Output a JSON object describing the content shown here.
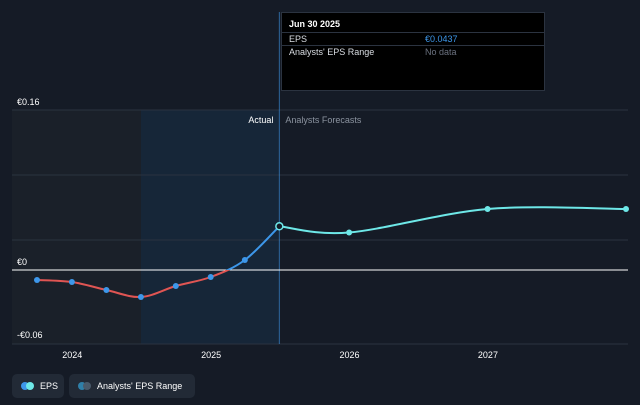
{
  "colors": {
    "background": "#151b26",
    "past_region": "#1a2029",
    "actual_highlight": "#162638",
    "eps_actual_positive": "#3d97ea",
    "eps_actual_negative": "#e05553",
    "eps_forecast": "#6ee8e8",
    "zero_line": "#ffffff",
    "grid": "#2b3340"
  },
  "region_labels": {
    "actual": "Actual",
    "forecast": "Analysts Forecasts"
  },
  "tooltip": {
    "title": "Jun 30 2025",
    "rows": [
      {
        "key": "EPS",
        "value": "€0.0437",
        "value_color": "#3d97ea"
      },
      {
        "key": "Analysts' EPS Range",
        "value": "No data",
        "value_color": "#6b7280"
      }
    ]
  },
  "legend": [
    {
      "label": "EPS",
      "icon": "eps-legend-icon",
      "colors": [
        "#3d97ea",
        "#6ee8e8"
      ]
    },
    {
      "label": "Analysts' EPS Range",
      "icon": "range-legend-icon",
      "colors": [
        "#2f7fa8",
        "#4a5a6a"
      ]
    }
  ],
  "chart_data": {
    "type": "line",
    "x_tick_labels": [
      "2024",
      "2025",
      "2026",
      "2027"
    ],
    "y_tick_labels": [
      "€0.16",
      "€0",
      "-€0.06"
    ],
    "ylim": [
      -0.06,
      0.16
    ],
    "xlim": [
      "2023-09-30",
      "2027-12-31"
    ],
    "grid": true,
    "series": [
      {
        "name": "EPS",
        "segment": "actual",
        "points": [
          {
            "x": "2023-09-30",
            "y": -0.01
          },
          {
            "x": "2023-12-31",
            "y": -0.012
          },
          {
            "x": "2024-03-31",
            "y": -0.02
          },
          {
            "x": "2024-06-30",
            "y": -0.027
          },
          {
            "x": "2024-09-30",
            "y": -0.016
          },
          {
            "x": "2024-12-31",
            "y": -0.007
          },
          {
            "x": "2025-03-31",
            "y": 0.01
          },
          {
            "x": "2025-06-30",
            "y": 0.0437
          }
        ]
      },
      {
        "name": "EPS",
        "segment": "forecast",
        "points": [
          {
            "x": "2025-06-30",
            "y": 0.0437
          },
          {
            "x": "2025-12-31",
            "y": 0.0375
          },
          {
            "x": "2026-12-31",
            "y": 0.061
          },
          {
            "x": "2027-12-31",
            "y": 0.061
          }
        ]
      }
    ]
  }
}
